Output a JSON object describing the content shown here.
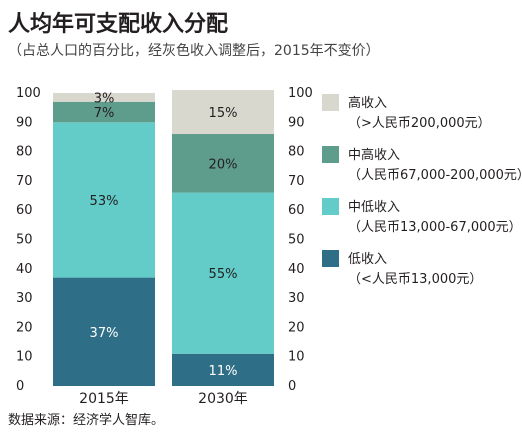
{
  "title": "人均年可支配收入分配",
  "subtitle": "（占总人口的百分比，经灰色收入调整后，2015年不变价）",
  "source": "数据来源：经济学人智库。",
  "chart_data": {
    "type": "bar",
    "stacked": true,
    "categories": [
      "2015年",
      "2030年"
    ],
    "series": [
      {
        "name": "低收入",
        "range": "（<人民币13,000元）",
        "color": "#2e6f87",
        "label_color": "#ffffff",
        "values": [
          37,
          11
        ]
      },
      {
        "name": "中低收入",
        "range": "（人民币13,000-67,000元）",
        "color": "#63ccc9",
        "label_color": "#231f20",
        "values": [
          53,
          55
        ]
      },
      {
        "name": "中高收入",
        "range": "（人民币67,000-200,000元）",
        "color": "#5e9c8c",
        "label_color": "#231f20",
        "values": [
          7,
          20
        ]
      },
      {
        "name": "高收入",
        "range": "（>人民币200,000元）",
        "color": "#d8d8cf",
        "label_color": "#231f20",
        "values": [
          3,
          15
        ]
      }
    ],
    "data_labels": [
      [
        "37%",
        "11%"
      ],
      [
        "53%",
        "55%"
      ],
      [
        "7%",
        "20%"
      ],
      [
        "3%",
        "15%"
      ]
    ],
    "y_ticks": [
      0,
      10,
      20,
      30,
      40,
      50,
      60,
      70,
      80,
      90,
      100
    ],
    "ylim": [
      0,
      100
    ],
    "axes_both_sides": true,
    "legend_position": "right"
  }
}
